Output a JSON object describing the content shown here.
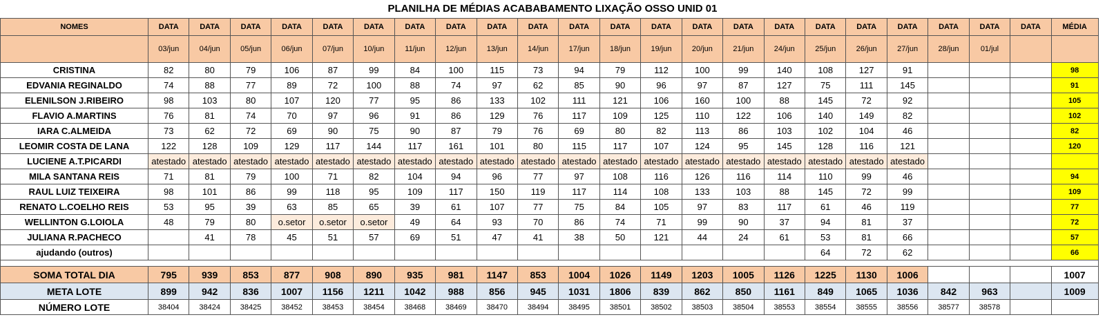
{
  "title": "PLANILHA DE MÉDIAS ACABABAMENTO LIXAÇÃO OSSO UNID 01",
  "header": {
    "names_label": "NOMES",
    "data_label": "DATA",
    "media_label": "MÉDIA",
    "dates": [
      "03/jun",
      "04/jun",
      "05/jun",
      "06/jun",
      "07/jun",
      "10/jun",
      "11/jun",
      "12/jun",
      "13/jun",
      "14/jun",
      "17/jun",
      "18/jun",
      "19/jun",
      "20/jun",
      "21/jun",
      "24/jun",
      "25/jun",
      "26/jun",
      "27/jun",
      "28/jun",
      "01/jul",
      ""
    ]
  },
  "rows": [
    {
      "name": "CRISTINA",
      "cells": [
        "82",
        "80",
        "79",
        "106",
        "87",
        "99",
        "84",
        "100",
        "115",
        "73",
        "94",
        "79",
        "112",
        "100",
        "99",
        "140",
        "108",
        "127",
        "91",
        "",
        "",
        ""
      ],
      "media": "98"
    },
    {
      "name": "EDVANIA REGINALDO",
      "cells": [
        "74",
        "88",
        "77",
        "89",
        "72",
        "100",
        "88",
        "74",
        "97",
        "62",
        "85",
        "90",
        "96",
        "97",
        "87",
        "127",
        "75",
        "111",
        "145",
        "",
        "",
        ""
      ],
      "media": "91"
    },
    {
      "name": "ELENILSON J.RIBEIRO",
      "cells": [
        "98",
        "103",
        "80",
        "107",
        "120",
        "77",
        "95",
        "86",
        "133",
        "102",
        "111",
        "121",
        "106",
        "160",
        "100",
        "88",
        "145",
        "72",
        "92",
        "",
        "",
        ""
      ],
      "media": "105"
    },
    {
      "name": "FLAVIO A.MARTINS",
      "cells": [
        "76",
        "81",
        "74",
        "70",
        "97",
        "96",
        "91",
        "86",
        "129",
        "76",
        "117",
        "109",
        "125",
        "110",
        "122",
        "106",
        "140",
        "149",
        "82",
        "",
        "",
        ""
      ],
      "media": "102"
    },
    {
      "name": "IARA C.ALMEIDA",
      "cells": [
        "73",
        "62",
        "72",
        "69",
        "90",
        "75",
        "90",
        "87",
        "79",
        "76",
        "69",
        "80",
        "82",
        "113",
        "86",
        "103",
        "102",
        "104",
        "46",
        "",
        "",
        ""
      ],
      "media": "82"
    },
    {
      "name": "LEOMIR COSTA DE LANA",
      "cells": [
        "122",
        "128",
        "109",
        "129",
        "117",
        "144",
        "117",
        "161",
        "101",
        "80",
        "115",
        "117",
        "107",
        "124",
        "95",
        "145",
        "128",
        "116",
        "121",
        "",
        "",
        ""
      ],
      "media": "120"
    },
    {
      "name": "LUCIENE A.T.PICARDI",
      "cells": [
        "atestado",
        "atestado",
        "atestado",
        "atestado",
        "atestado",
        "atestado",
        "atestado",
        "atestado",
        "atestado",
        "atestado",
        "atestado",
        "atestado",
        "atestado",
        "atestado",
        "atestado",
        "atestado",
        "atestado",
        "atestado",
        "atestado",
        "",
        "",
        ""
      ],
      "media": ""
    },
    {
      "name": "MILA SANTANA REIS",
      "cells": [
        "71",
        "81",
        "79",
        "100",
        "71",
        "82",
        "104",
        "94",
        "96",
        "77",
        "97",
        "108",
        "116",
        "126",
        "116",
        "114",
        "110",
        "99",
        "46",
        "",
        "",
        ""
      ],
      "media": "94"
    },
    {
      "name": "RAUL LUIZ TEIXEIRA",
      "cells": [
        "98",
        "101",
        "86",
        "99",
        "118",
        "95",
        "109",
        "117",
        "150",
        "119",
        "117",
        "114",
        "108",
        "133",
        "103",
        "88",
        "145",
        "72",
        "99",
        "",
        "",
        ""
      ],
      "media": "109"
    },
    {
      "name": "RENATO L.COELHO REIS",
      "cells": [
        "53",
        "95",
        "39",
        "63",
        "85",
        "65",
        "39",
        "61",
        "107",
        "77",
        "75",
        "84",
        "105",
        "97",
        "83",
        "117",
        "61",
        "46",
        "119",
        "",
        "",
        ""
      ],
      "media": "77"
    },
    {
      "name": "WELLINTON G.LOIOLA",
      "cells": [
        "48",
        "79",
        "80",
        "o.setor",
        "o.setor",
        "o.setor",
        "49",
        "64",
        "93",
        "70",
        "86",
        "74",
        "71",
        "99",
        "90",
        "37",
        "94",
        "81",
        "37",
        "",
        "",
        ""
      ],
      "media": "72"
    },
    {
      "name": "JULIANA R.PACHECO",
      "cells": [
        "",
        "41",
        "78",
        "45",
        "51",
        "57",
        "69",
        "51",
        "47",
        "41",
        "38",
        "50",
        "121",
        "44",
        "24",
        "61",
        "53",
        "81",
        "66",
        "",
        "",
        ""
      ],
      "media": "57"
    },
    {
      "name": "ajudando (outros)",
      "cells": [
        "",
        "",
        "",
        "",
        "",
        "",
        "",
        "",
        "",
        "",
        "",
        "",
        "",
        "",
        "",
        "",
        "64",
        "72",
        "62",
        "",
        "",
        ""
      ],
      "media": "66"
    }
  ],
  "soma": {
    "label": "SOMA TOTAL DIA",
    "cells": [
      "795",
      "939",
      "853",
      "877",
      "908",
      "890",
      "935",
      "981",
      "1147",
      "853",
      "1004",
      "1026",
      "1149",
      "1203",
      "1005",
      "1126",
      "1225",
      "1130",
      "1006",
      "",
      "",
      ""
    ],
    "media": "1007"
  },
  "meta": {
    "label": "META LOTE",
    "cells": [
      "899",
      "942",
      "836",
      "1007",
      "1156",
      "1211",
      "1042",
      "988",
      "856",
      "945",
      "1031",
      "1806",
      "839",
      "862",
      "850",
      "1161",
      "849",
      "1065",
      "1036",
      "842",
      "963",
      ""
    ],
    "media": "1009"
  },
  "lote": {
    "label": "NÚMERO LOTE",
    "cells": [
      "38404",
      "38424",
      "38425",
      "38452",
      "38453",
      "38454",
      "38468",
      "38469",
      "38470",
      "38494",
      "38495",
      "38501",
      "38502",
      "38503",
      "38504",
      "38553",
      "38554",
      "38555",
      "38556",
      "38577",
      "38578",
      ""
    ],
    "media": ""
  }
}
